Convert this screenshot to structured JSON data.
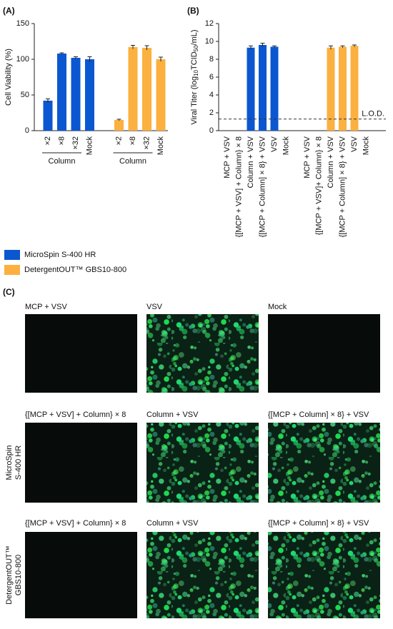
{
  "chart_data": [
    {
      "type": "bar",
      "panel": "(A)",
      "ylabel": "Cell Viability (%)",
      "categories": [
        "×2",
        "×8",
        "×32",
        "Mock",
        "×2",
        "×8",
        "×32",
        "Mock"
      ],
      "group_label": "Column",
      "series": [
        {
          "name": "MicroSpin S-400 HR",
          "color": "#0a57d1",
          "values": [
            42,
            108,
            102,
            100,
            null,
            null,
            null,
            null
          ],
          "errors": [
            2.5,
            1,
            1.5,
            3.5,
            null,
            null,
            null,
            null
          ]
        },
        {
          "name": "DetergentOUT™ GBS10-800",
          "color": "#fbb03f",
          "values": [
            null,
            null,
            null,
            null,
            15,
            117,
            116,
            100
          ],
          "errors": [
            null,
            null,
            null,
            null,
            1,
            2.5,
            3,
            3
          ]
        }
      ],
      "ylim": [
        0,
        150
      ],
      "yticks": [
        0,
        50,
        100,
        150
      ]
    },
    {
      "type": "bar",
      "panel": "(B)",
      "ylabel": [
        "Viral Titer (log",
        "10",
        "TCID",
        "50",
        "/mL)"
      ],
      "categories": [
        "MCP + VSV",
        "{[MCP + VSV] + Column} × 8",
        "Column + VSV",
        "{[MCP + Column] × 8} + VSV",
        "VSV",
        "Mock",
        "MCP + VSV",
        "{[MCP + VSV]+ Column} × 8",
        "Column + VSV",
        "{[MCP + Column] × 8} + VSV",
        "VSV",
        "Mock"
      ],
      "series": [
        {
          "color": "#0a57d1",
          "values": [
            null,
            null,
            9.3,
            9.6,
            9.4,
            null,
            null,
            null,
            null,
            null,
            null,
            null
          ],
          "errors": [
            null,
            null,
            0.2,
            0.2,
            0.1,
            null,
            null,
            null,
            null,
            null,
            null,
            null
          ]
        },
        {
          "color": "#fbb03f",
          "values": [
            null,
            null,
            null,
            null,
            null,
            null,
            null,
            null,
            9.3,
            9.4,
            9.5,
            null
          ],
          "errors": [
            null,
            null,
            null,
            null,
            null,
            null,
            null,
            null,
            0.2,
            0.1,
            0.1,
            null
          ]
        }
      ],
      "lod": 1.3,
      "lod_label": "L.O.D.",
      "ylim": [
        0,
        12
      ],
      "yticks": [
        0,
        2,
        4,
        6,
        8,
        10,
        12
      ]
    }
  ],
  "panel_c": {
    "label": "(C)",
    "rows": [
      {
        "captions": [
          "MCP + VSV",
          "VSV",
          "Mock"
        ]
      },
      {
        "label": [
          "MicroSpin",
          "S-400 HR"
        ],
        "captions": [
          "{[MCP + VSV] + Column} × 8",
          "Column + VSV",
          "{[MCP + Column] × 8} + VSV"
        ]
      },
      {
        "label": [
          "DetergentOUT™",
          "GBS10-800"
        ],
        "captions": [
          "{[MCP + VSV] + Column} × 8",
          "Column + VSV",
          "{[MCP + Column] × 8} + VSV"
        ]
      }
    ]
  }
}
